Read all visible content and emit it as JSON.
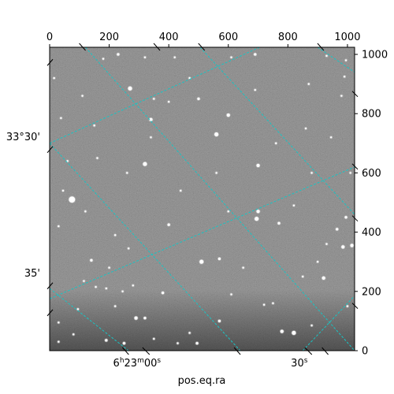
{
  "chart_data": {
    "type": "image",
    "image_kind": "astronomical-grayscale-star-field",
    "colormap": "gray",
    "xlabel": "pos.eq.ra",
    "ylabel": "",
    "pixel_axes": {
      "x": {
        "range": [
          0,
          1024
        ],
        "ticks": [
          0,
          200,
          400,
          600,
          800,
          1000
        ],
        "position": "top"
      },
      "y": {
        "range": [
          0,
          1024
        ],
        "ticks": [
          0,
          200,
          400,
          600,
          800,
          1000
        ],
        "position": "right"
      }
    },
    "world_ticks": {
      "ra": [
        {
          "label": "6h23m00s",
          "label_main": "6",
          "label_h": "h",
          "label_mid": "23",
          "label_m": "m",
          "label_end": "00",
          "label_s": "s",
          "x": 325
        },
        {
          "label": "30s",
          "label_main": "30",
          "label_s": "s",
          "x": 870
        }
      ],
      "dec": [
        {
          "label": "33°30'",
          "y": 700
        },
        {
          "label": "35'",
          "y": 240
        }
      ]
    },
    "grid": {
      "on": true,
      "color": "#19c4c4",
      "style": "dashed"
    },
    "grid_lines": [
      {
        "family": "ra",
        "from": [
          120,
          1024
        ],
        "to": [
          1024,
          0
        ]
      },
      {
        "family": "ra",
        "from": [
          0,
          700
        ],
        "to": [
          705,
          1024
        ]
      },
      {
        "family": "ra",
        "from": [
          0,
          175
        ],
        "to": [
          1024,
          620
        ]
      },
      {
        "family": "dec",
        "from": [
          0,
          700
        ],
        "to": [
          640,
          0
        ]
      },
      {
        "family": "dec",
        "from": [
          0,
          210
        ],
        "to": [
          265,
          0
        ]
      },
      {
        "family": "dec",
        "from": [
          505,
          1024
        ],
        "to": [
          1024,
          460
        ]
      },
      {
        "family": "dec",
        "from": [
          850,
          0
        ],
        "to": [
          1024,
          185
        ]
      },
      {
        "family": "dec",
        "from": [
          1024,
          1024
        ],
        "to": [
          1024,
          1024
        ]
      },
      {
        "family": "ra",
        "from": [
          100,
          1024
        ],
        "to": [
          100,
          1024
        ]
      },
      {
        "family": "ra",
        "from": [
          900,
          1024
        ],
        "to": [
          1024,
          940
        ]
      }
    ],
    "stars": [
      [
        75,
        510,
        8
      ],
      [
        270,
        885,
        5
      ],
      [
        340,
        780,
        4
      ],
      [
        320,
        630,
        5
      ],
      [
        560,
        730,
        5
      ],
      [
        600,
        795,
        4
      ],
      [
        700,
        625,
        4
      ],
      [
        700,
        470,
        4
      ],
      [
        695,
        445,
        5
      ],
      [
        770,
        430,
        3
      ],
      [
        995,
        450,
        3
      ],
      [
        985,
        350,
        4
      ],
      [
        510,
        300,
        5
      ],
      [
        570,
        310,
        3
      ],
      [
        400,
        425,
        3
      ],
      [
        965,
        410,
        3
      ],
      [
        1015,
        355,
        4
      ],
      [
        920,
        245,
        4
      ],
      [
        230,
        1000,
        3
      ],
      [
        180,
        985,
        2
      ],
      [
        38,
        785,
        2
      ],
      [
        15,
        920,
        2
      ],
      [
        820,
        60,
        5
      ],
      [
        780,
        65,
        4
      ],
      [
        720,
        155,
        2
      ],
      [
        570,
        100,
        3
      ],
      [
        495,
        25,
        3
      ],
      [
        430,
        25,
        2
      ],
      [
        250,
        25,
        3
      ],
      [
        190,
        35,
        3
      ],
      [
        290,
        110,
        4
      ],
      [
        320,
        110,
        3
      ],
      [
        80,
        55,
        2
      ],
      [
        30,
        95,
        2
      ],
      [
        140,
        305,
        3
      ],
      [
        115,
        235,
        2
      ],
      [
        155,
        215,
        2
      ],
      [
        190,
        210,
        2
      ],
      [
        245,
        200,
        2
      ],
      [
        280,
        220,
        2
      ],
      [
        350,
        850,
        2
      ],
      [
        500,
        850,
        3
      ],
      [
        690,
        1000,
        3
      ],
      [
        610,
        990,
        2
      ],
      [
        990,
        925,
        2
      ],
      [
        995,
        980,
        2
      ],
      [
        930,
        995,
        2
      ],
      [
        1010,
        600,
        2
      ],
      [
        860,
        750,
        2
      ],
      [
        900,
        300,
        2
      ],
      [
        440,
        540,
        2
      ],
      [
        380,
        195,
        3
      ],
      [
        650,
        280,
        2
      ],
      [
        750,
        160,
        2
      ],
      [
        850,
        250,
        2
      ],
      [
        60,
        640,
        2
      ],
      [
        150,
        760,
        2
      ],
      [
        120,
        470,
        2
      ],
      [
        220,
        390,
        2
      ],
      [
        265,
        345,
        2
      ],
      [
        600,
        470,
        2
      ],
      [
        820,
        490,
        2
      ],
      [
        930,
        360,
        2
      ],
      [
        870,
        900,
        2
      ],
      [
        690,
        880,
        2
      ],
      [
        470,
        920,
        2
      ],
      [
        110,
        860,
        2
      ],
      [
        200,
        280,
        2
      ],
      [
        980,
        860,
        2
      ],
      [
        30,
        30,
        2
      ],
      [
        45,
        540,
        2
      ],
      [
        160,
        650,
        2
      ],
      [
        340,
        720,
        2
      ],
      [
        420,
        990,
        2
      ],
      [
        560,
        600,
        2
      ],
      [
        760,
        700,
        2
      ],
      [
        880,
        600,
        2
      ],
      [
        945,
        720,
        2
      ],
      [
        610,
        190,
        2
      ],
      [
        470,
        60,
        2
      ],
      [
        350,
        40,
        2
      ],
      [
        95,
        140,
        2
      ],
      [
        320,
        990,
        2
      ],
      [
        260,
        600,
        2
      ],
      [
        400,
        840,
        2
      ],
      [
        880,
        85,
        2
      ],
      [
        30,
        420,
        2
      ],
      [
        1000,
        150,
        2
      ],
      [
        220,
        150,
        2
      ]
    ]
  }
}
